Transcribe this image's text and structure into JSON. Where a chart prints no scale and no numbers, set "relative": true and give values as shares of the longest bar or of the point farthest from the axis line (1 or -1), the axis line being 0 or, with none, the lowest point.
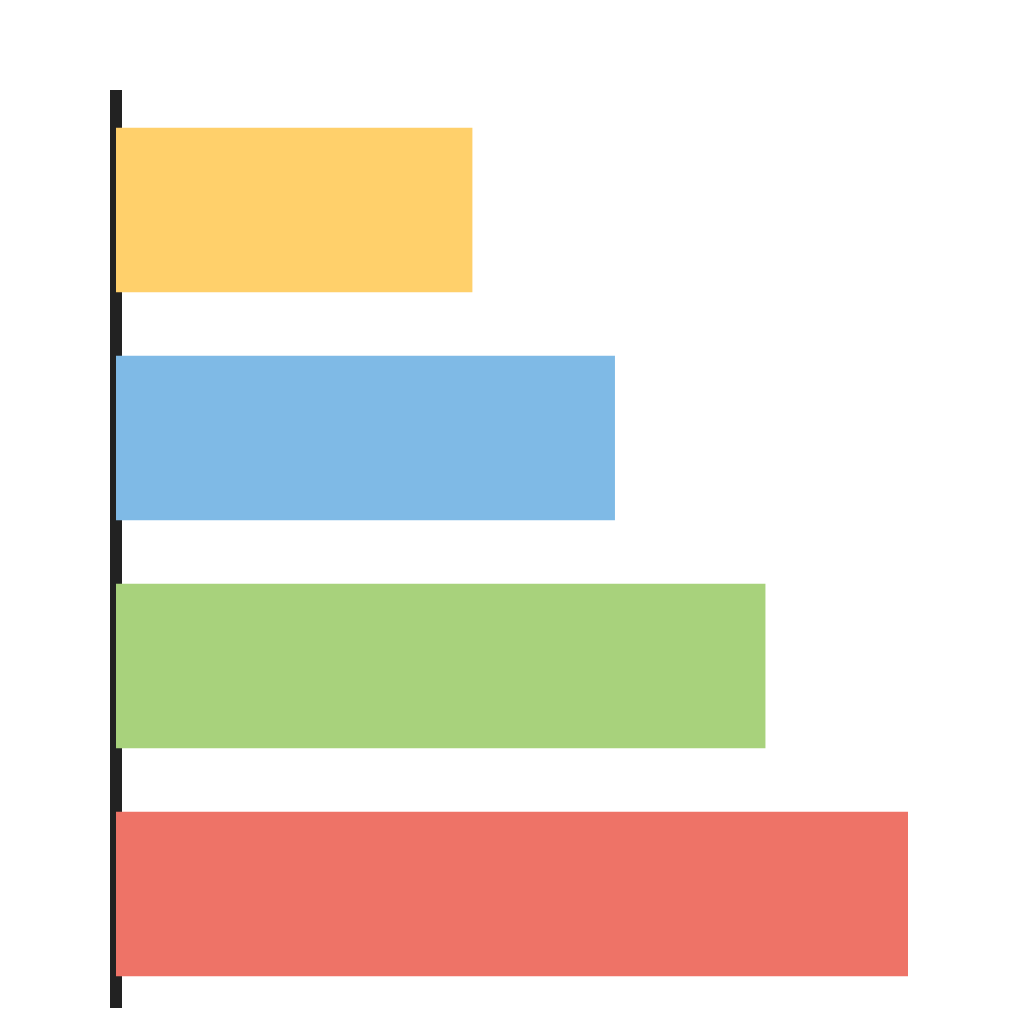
{
  "chart_data": {
    "type": "bar",
    "orientation": "horizontal",
    "relative": true,
    "categories": [
      null,
      null,
      null,
      null
    ],
    "values": [
      0.45,
      0.63,
      0.82,
      1
    ],
    "colors": [
      "#ffd06b",
      "#7fbae6",
      "#a8d27c",
      "#ee7367"
    ]
  }
}
